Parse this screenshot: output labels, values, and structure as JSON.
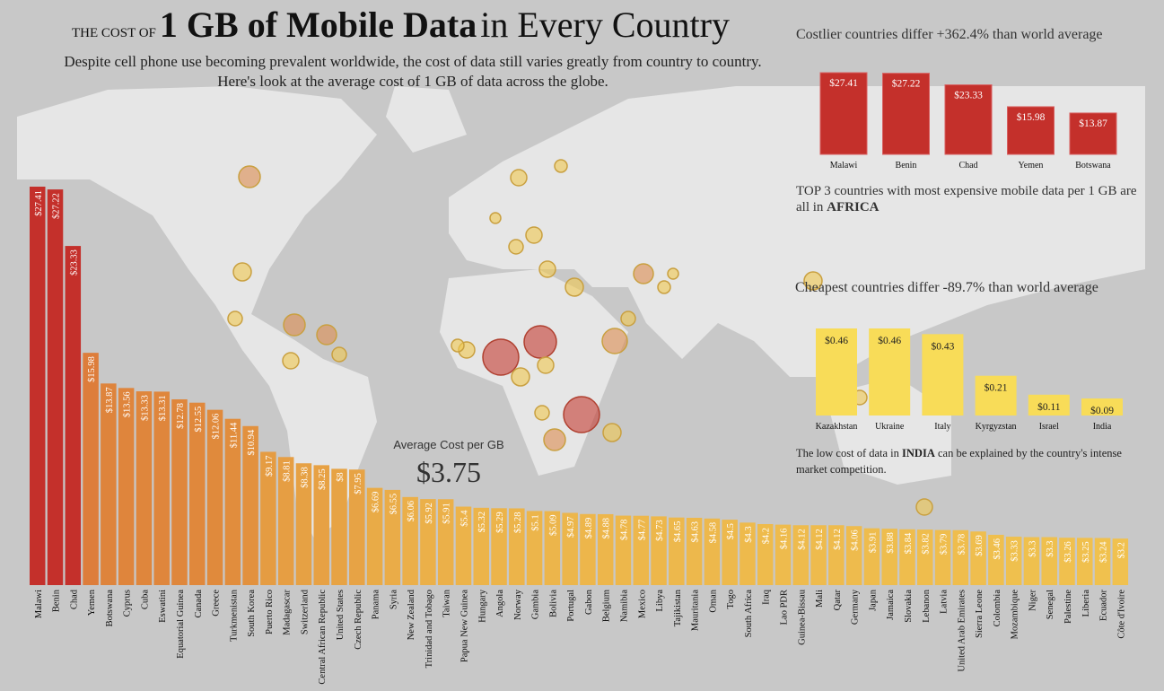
{
  "header": {
    "title_small": "THE COST OF",
    "title_bold": "1 GB of Mobile Data",
    "title_rest": "in Every Country",
    "subtitle": "Despite cell phone use becoming prevalent worldwide, the cost of data still varies greatly from country to country. Here's look at the average cost of 1 GB of data across the globe."
  },
  "kpi": {
    "label": "Average Cost per GB",
    "value": "$3.75"
  },
  "costly_panel": {
    "heading": "Costlier countries differ +362.4% than world average",
    "note_pre": "TOP 3 countries with most expensive mobile data per 1 GB are all in ",
    "note_bold": "AFRICA"
  },
  "cheap_panel": {
    "heading": "Cheapest countries differ -89.7% than world average",
    "note_pre": "The low cost of data in ",
    "note_bold": "INDIA",
    "note_post": " can be explained by the country's intense market competition."
  },
  "colors": {
    "high": "#c4302b",
    "mid": "#e08a3c",
    "low": "#f0c24f",
    "cheap": "#f8dc58",
    "map_land": "#e6e6e6",
    "background": "#c8c8c8"
  },
  "chart_data": [
    {
      "type": "bar",
      "title": "",
      "orientation": "vertical",
      "sorted": "descending",
      "categories": [
        "Malawi",
        "Benin",
        "Chad",
        "Yemen",
        "Botswana",
        "Cyprus",
        "Cuba",
        "Eswatini",
        "Equatorial Guinea",
        "Canada",
        "Greece",
        "Turkmenistan",
        "South Korea",
        "Puerto Rico",
        "Madagascar",
        "Switzerland",
        "Central African Republic",
        "United States",
        "Czech Republic",
        "Panama",
        "Syria",
        "New Zealand",
        "Trinidad and Tobago",
        "Taiwan",
        "Papua New Guinea",
        "Hungary",
        "Angola",
        "Norway",
        "Gambia",
        "Bolivia",
        "Portugal",
        "Gabon",
        "Belgium",
        "Namibia",
        "Mexico",
        "Libya",
        "Tajikistan",
        "Mauritania",
        "Oman",
        "Togo",
        "South Africa",
        "Iraq",
        "Lao PDR",
        "Guinea-Bissau",
        "Mali",
        "Qatar",
        "Germany",
        "Japan",
        "Jamaica",
        "Slovakia",
        "Lebanon",
        "Latvia",
        "United Arab Emirates",
        "Sierra Leone",
        "Colombia",
        "Mozambique",
        "Niger",
        "Senegal",
        "Palestine",
        "Liberia",
        "Ecuador",
        "Côte d'Ivoire"
      ],
      "values": [
        27.41,
        27.22,
        23.33,
        15.98,
        13.87,
        13.56,
        13.33,
        13.31,
        12.78,
        12.55,
        12.06,
        11.44,
        10.94,
        9.17,
        8.81,
        8.38,
        8.25,
        8,
        7.95,
        6.69,
        6.55,
        6.06,
        5.92,
        5.91,
        5.4,
        5.32,
        5.29,
        5.28,
        5.1,
        5.09,
        4.97,
        4.89,
        4.88,
        4.78,
        4.77,
        4.73,
        4.65,
        4.63,
        4.58,
        4.5,
        4.3,
        4.2,
        4.16,
        4.12,
        4.12,
        4.12,
        4.06,
        3.91,
        3.88,
        3.84,
        3.82,
        3.79,
        3.78,
        3.69,
        3.46,
        3.33,
        3.3,
        3.3,
        3.26,
        3.25,
        3.24,
        3.2
      ],
      "labels": [
        "$27.41",
        "$27.22",
        "$23.33",
        "$15.98",
        "$13.87",
        "$13.56",
        "$13.33",
        "$13.31",
        "$12.78",
        "$12.55",
        "$12.06",
        "$11.44",
        "$10.94",
        "$9.17",
        "$8.81",
        "$8.38",
        "$8.25",
        "$8",
        "$7.95",
        "$6.69",
        "$6.55",
        "$6.06",
        "$5.92",
        "$5.91",
        "$5.4",
        "$5.32",
        "$5.29",
        "$5.28",
        "$5.1",
        "$5.09",
        "$4.97",
        "$4.89",
        "$4.88",
        "$4.78",
        "$4.77",
        "$4.73",
        "$4.65",
        "$4.63",
        "$4.58",
        "$4.5",
        "$4.3",
        "$4.2",
        "$4.16",
        "$4.12",
        "$4.12",
        "$4.12",
        "$4.06",
        "$3.91",
        "$3.88",
        "$3.84",
        "$3.82",
        "$3.79",
        "$3.78",
        "$3.69",
        "$3.46",
        "$3.33",
        "$3.3",
        "$3.3",
        "$3.26",
        "$3.25",
        "$3.24",
        "$3.2"
      ],
      "ylim": [
        0,
        27.41
      ],
      "grid": false,
      "color_scale": "value"
    },
    {
      "type": "bar",
      "title": "Costlier countries differ +362.4% than world average",
      "categories": [
        "Malawi",
        "Benin",
        "Chad",
        "Yemen",
        "Botswana"
      ],
      "values": [
        27.41,
        27.22,
        23.33,
        15.98,
        13.87
      ],
      "labels": [
        "$27.41",
        "$27.22",
        "$23.33",
        "$15.98",
        "$13.87"
      ]
    },
    {
      "type": "bar",
      "title": "Cheapest countries differ -89.7% than world average",
      "categories": [
        "Kazakhstan",
        "Ukraine",
        "Italy",
        "Kyrgyzstan",
        "Israel",
        "India"
      ],
      "values": [
        0.46,
        0.46,
        0.43,
        0.21,
        0.11,
        0.09
      ],
      "labels": [
        "$0.46",
        "$0.46",
        "$0.43",
        "$0.21",
        "$0.11",
        "$0.09"
      ]
    }
  ]
}
